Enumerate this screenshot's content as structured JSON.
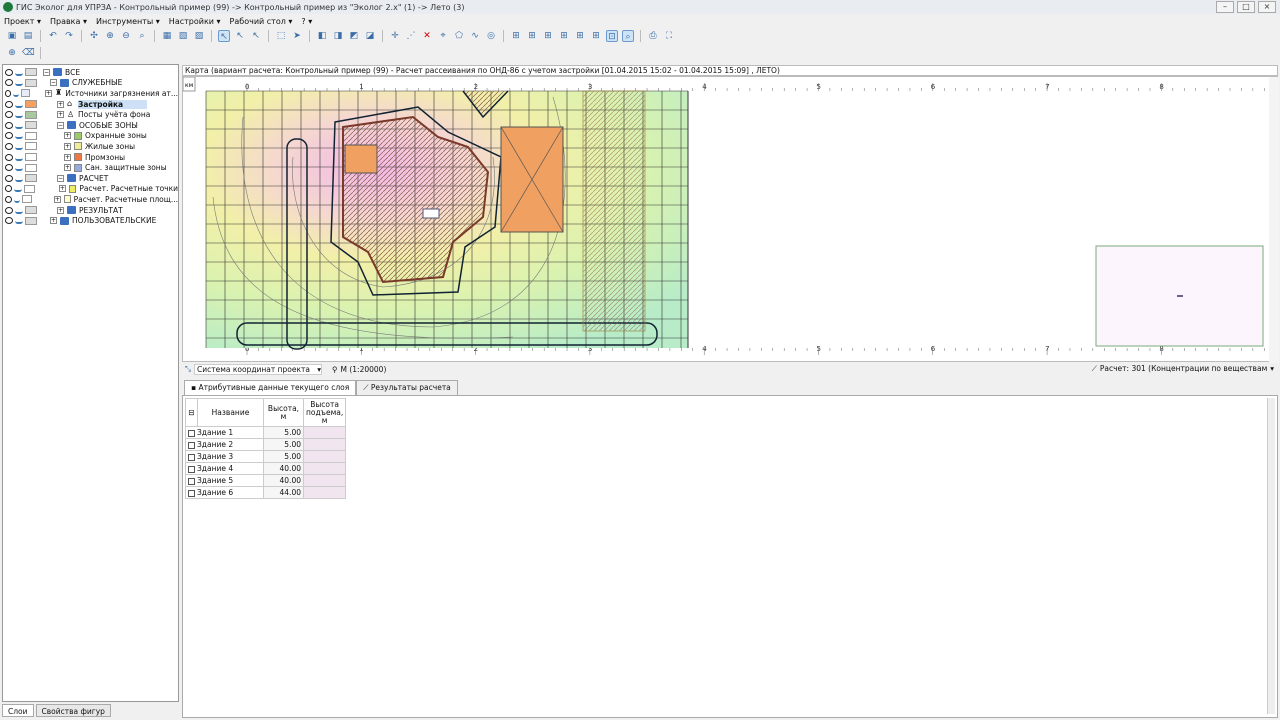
{
  "title": "ГИС Эколог для УПРЗА - Контрольный пример (99) -> Контрольный пример из \"Эколог 2.х\" (1) -> Лето (3)",
  "menu": [
    "Проект ▾",
    "Правка ▾",
    "Инструменты ▾",
    "Настройки ▾",
    "Рабочий стол ▾",
    "? ▾"
  ],
  "layers": [
    {
      "label": "ВСЕ",
      "level": 0,
      "type": "folder",
      "sw": "#ddd"
    },
    {
      "label": "СЛУЖЕБНЫЕ",
      "level": 1,
      "type": "folder",
      "sw": "#ddd"
    },
    {
      "label": "Источники загрязнения ат...",
      "level": 2,
      "type": "source",
      "sw": "#e8ecf8"
    },
    {
      "label": "Застройка",
      "level": 2,
      "type": "house",
      "sw": "#f5a060",
      "selected": true
    },
    {
      "label": "Посты учёта фона",
      "level": 2,
      "type": "post",
      "sw": "#a8c8a0"
    },
    {
      "label": "ОСОБЫЕ ЗОНЫ",
      "level": 2,
      "type": "folder",
      "sw": "#ddd"
    },
    {
      "label": "Охранные зоны",
      "level": 3,
      "type": "zone-green",
      "sw": "#fff"
    },
    {
      "label": "Жилые зоны",
      "level": 3,
      "type": "zone-yellow",
      "sw": "#fff"
    },
    {
      "label": "Промзоны",
      "level": 3,
      "type": "zone-orange",
      "sw": "#fff"
    },
    {
      "label": "Сан. защитные зоны",
      "level": 3,
      "type": "zone-blue",
      "sw": "#fff"
    },
    {
      "label": "РАСЧЕТ",
      "level": 2,
      "type": "folder",
      "sw": "#ddd"
    },
    {
      "label": "Расчет. Расчетные точки",
      "level": 3,
      "type": "point",
      "sw": "#fff"
    },
    {
      "label": "Расчет. Расчетные площ...",
      "level": 3,
      "type": "area",
      "sw": "#fff"
    },
    {
      "label": "РЕЗУЛЬТАТ",
      "level": 2,
      "type": "folder",
      "sw": "#ddd"
    },
    {
      "label": "ПОЛЬЗОВАТЕЛЬСКИЕ",
      "level": 1,
      "type": "folder",
      "sw": "#ddd"
    }
  ],
  "left_tabs": [
    "Слои",
    "Свойства фигур"
  ],
  "map": {
    "header": "Карта (вариант расчета: Контрольный пример (99) - Расчет рассеивания по ОНД-86 с учетом застройки [01.04.2015 15:02 - 01.04.2015 15:09] , ЛЕТО)",
    "unit": "км",
    "ruler_x": [
      "0",
      "1",
      "2",
      "3",
      "4",
      "5",
      "6",
      "7",
      "8"
    ],
    "ruler_y": [
      "2",
      "1"
    ]
  },
  "status": {
    "crs": "Система координат проекта",
    "scale": "М (1:20000)",
    "calc": "Расчет: 301 (Концентрации по веществам"
  },
  "tabs": [
    "Атрибутивные данные текущего слоя",
    "Результаты расчета"
  ],
  "table": {
    "headers": [
      "Название",
      "Высота, м",
      "Высота подъема, м"
    ],
    "rows": [
      [
        "Здание 1",
        "5.00",
        ""
      ],
      [
        "Здание 2",
        "5.00",
        ""
      ],
      [
        "Здание 3",
        "5.00",
        ""
      ],
      [
        "Здание 4",
        "40.00",
        ""
      ],
      [
        "Здание 5",
        "40.00",
        ""
      ],
      [
        "Здание 6",
        "44.00",
        ""
      ]
    ]
  }
}
